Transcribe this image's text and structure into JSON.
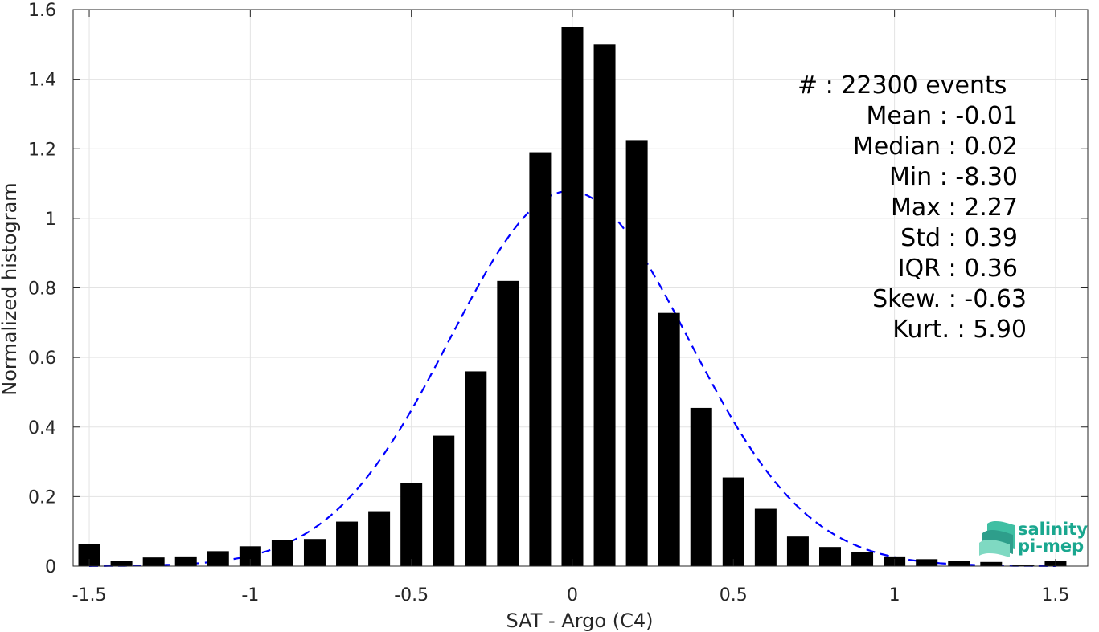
{
  "chart_data": {
    "type": "bar",
    "xlabel": "SAT - Argo (C4)",
    "ylabel": "Normalized histogram",
    "xlim": [
      -1.55,
      1.6
    ],
    "ylim": [
      0,
      1.6
    ],
    "grid": true,
    "x_ticks": [
      -1.5,
      -1,
      -0.5,
      0,
      0.5,
      1,
      1.5
    ],
    "x_tick_labels": [
      "-1.5",
      "-1",
      "-0.5",
      "0",
      "0.5",
      "1",
      "1.5"
    ],
    "y_ticks": [
      0,
      0.2,
      0.4,
      0.6,
      0.8,
      1,
      1.2,
      1.4,
      1.6
    ],
    "y_tick_labels": [
      "0",
      "0.2",
      "0.4",
      "0.6",
      "0.8",
      "1",
      "1.2",
      "1.4",
      "1.6"
    ],
    "bar_color": "#000000",
    "bins": [
      -1.5,
      -1.4,
      -1.3,
      -1.2,
      -1.1,
      -1.0,
      -0.9,
      -0.8,
      -0.7,
      -0.6,
      -0.5,
      -0.4,
      -0.3,
      -0.2,
      -0.1,
      0.0,
      0.1,
      0.2,
      0.3,
      0.4,
      0.5,
      0.6,
      0.7,
      0.8,
      0.9,
      1.0,
      1.1,
      1.2,
      1.3,
      1.4,
      1.5
    ],
    "values": [
      0.063,
      0.015,
      0.025,
      0.028,
      0.043,
      0.057,
      0.075,
      0.078,
      0.128,
      0.158,
      0.24,
      0.375,
      0.56,
      0.82,
      1.19,
      1.55,
      1.5,
      1.225,
      0.728,
      0.455,
      0.255,
      0.165,
      0.085,
      0.055,
      0.04,
      0.028,
      0.02,
      0.015,
      0.012,
      0.004,
      0.015
    ],
    "fit": {
      "type": "gaussian",
      "style": "dashed",
      "color": "#0000ff",
      "mean": -0.01,
      "std": 0.37
    },
    "stats_lines": [
      "#  : 22300 events",
      "Mean : -0.01",
      "Median : 0.02",
      "Min : -8.30",
      "Max : 2.27",
      "Std : 0.39",
      "IQR : 0.36",
      "Skew. : -0.63",
      "Kurt. : 5.90"
    ]
  },
  "logo": {
    "line1": "salinity",
    "line2": "pi-mep",
    "color": "#1aa78f"
  }
}
